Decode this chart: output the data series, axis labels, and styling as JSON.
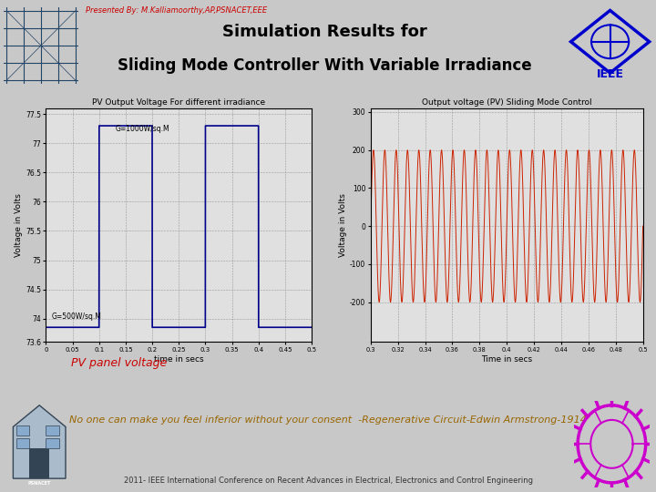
{
  "presented_by": "Presented By: M.Kalliamoorthy,AP,PSNACET,EEE",
  "title_line1": "Simulation Results for",
  "title_line2": "Sliding Mode Controller With Variable Irradiance",
  "subtitle_left": "PV Output Voltage For different irradiance",
  "subtitle_right": "Output voltage (PV) Sliding Mode Control",
  "ylabel_left": "Voltage in Volts",
  "ylabel_right": "Voltage in Volts",
  "xlabel_left": "time in secs",
  "xlabel_right": "Time in secs",
  "annotation_left1": "G=1000W/sq.M",
  "annotation_left2": "G=500W/sq.M",
  "caption": "PV panel voltage",
  "quote": "No one can make you feel inferior without your consent  -Regenerative Circuit-Edwin Armstrong-1914",
  "footer": "2011- IEEE International Conference on Recent Advances in Electrical, Electronics and Control Engineering",
  "bg_color": "#c8c8c8",
  "plot_area_bg": "#c8c8c8",
  "header_bg": "#ffffff",
  "plot_bg": "#e0e0e0",
  "line_color_left": "#00008B",
  "line_color_right": "#cc2200",
  "sep_outer": "#8B0000",
  "sep_inner": "#cd5c5c",
  "left_plot": {
    "xlim": [
      0,
      0.5
    ],
    "ylim": [
      73.6,
      77.6
    ],
    "high_val": 77.3,
    "low_val": 73.85,
    "transitions": [
      0.1,
      0.2,
      0.3,
      0.4
    ]
  },
  "right_plot": {
    "xlim": [
      0.3,
      0.5
    ],
    "ylim": [
      -305,
      310
    ],
    "amplitude": 200,
    "frequency": 120
  }
}
